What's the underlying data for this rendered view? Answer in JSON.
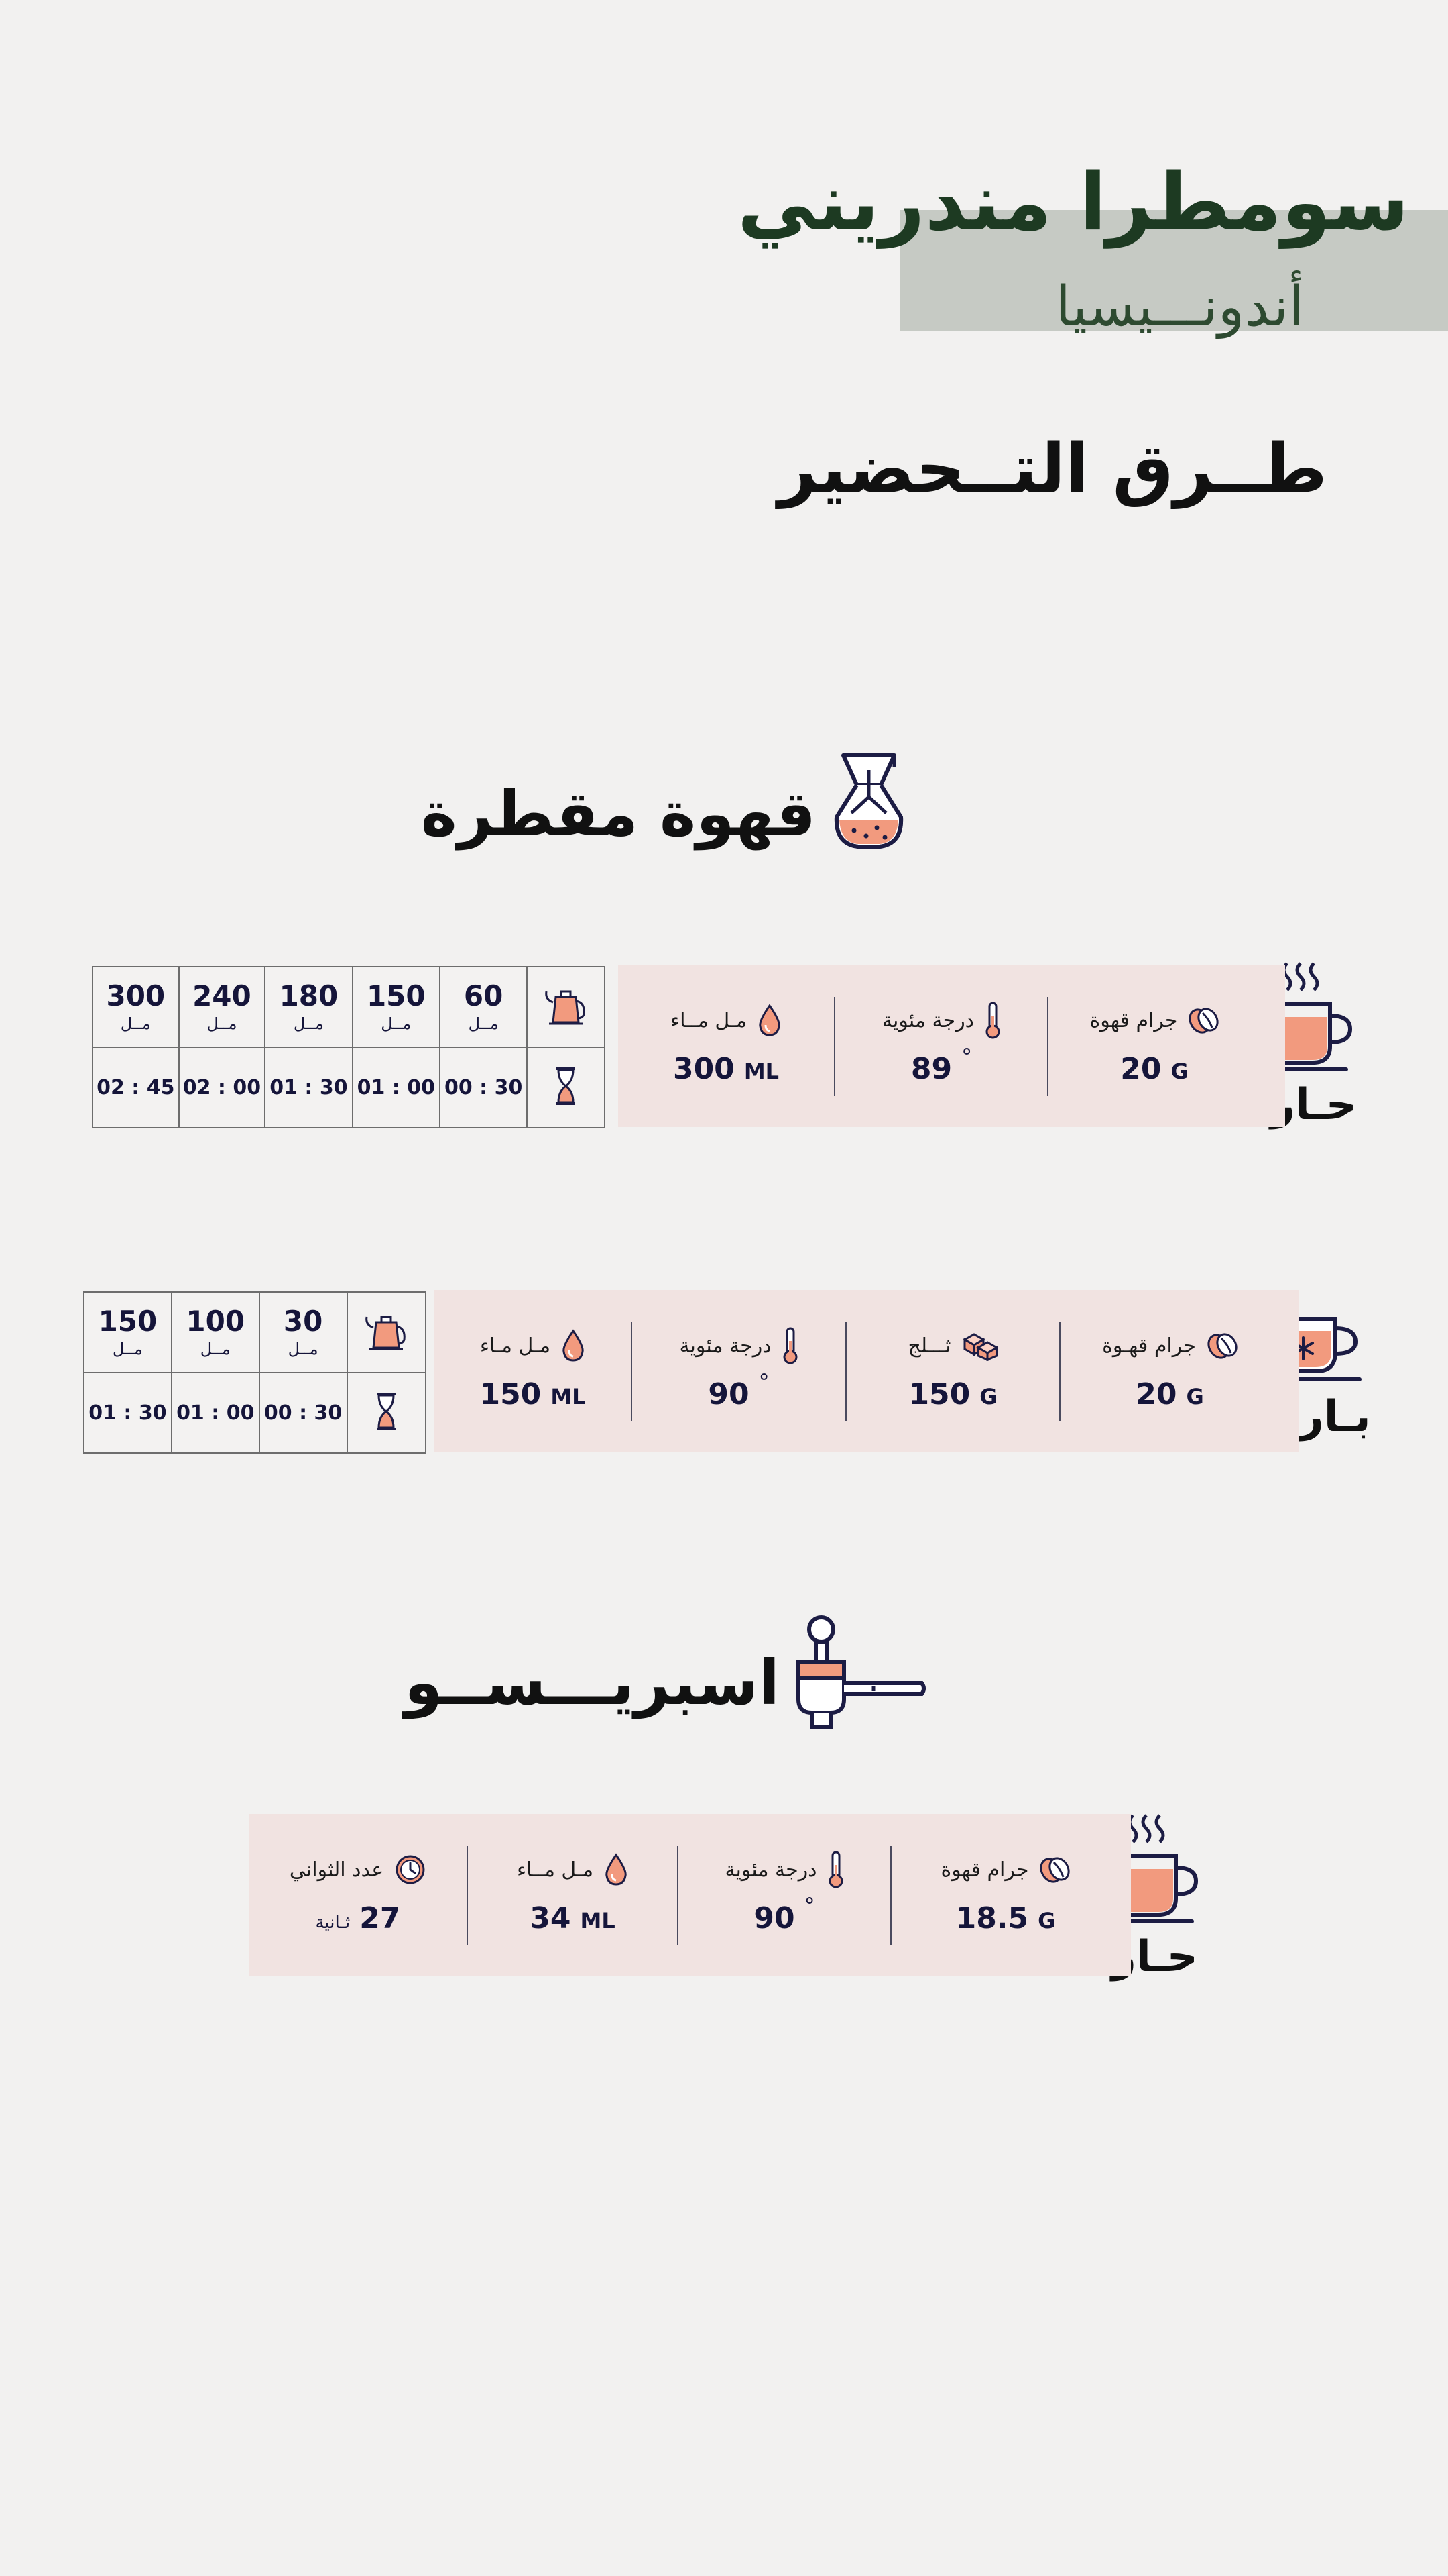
{
  "header": {
    "product_title": "سومطرا مندريني",
    "origin": "أندونـــيسيا",
    "methods_heading": "طــرق التــحضير"
  },
  "drip": {
    "title": "قهوة مقطرة",
    "icon": "chemex-icon",
    "hot": {
      "label": "حـار",
      "coffee_label": "جرام قهوة",
      "coffee_value": "20",
      "coffee_unit": "G",
      "temp_label": "درجة مئوية",
      "temp_value": "89",
      "temp_unit": "°",
      "water_label": "مـل مــاء",
      "water_value": "300",
      "water_unit": "ML",
      "table": {
        "ml_values": [
          "60",
          "150",
          "180",
          "240",
          "300"
        ],
        "ml_unit": "مــل",
        "times": [
          "00 : 30",
          "01 : 00",
          "01 : 30",
          "02 : 00",
          "02 : 45"
        ]
      }
    },
    "cold": {
      "label": "بـارد",
      "coffee_label": "جرام قهـوة",
      "coffee_value": "20",
      "coffee_unit": "G",
      "ice_label": "ثـــلج",
      "ice_value": "150",
      "ice_unit": "G",
      "temp_label": "درجة مئوية",
      "temp_value": "90",
      "temp_unit": "°",
      "water_label": "مـل مـاء",
      "water_value": "150",
      "water_unit": "ML",
      "table": {
        "ml_values": [
          "30",
          "100",
          "150"
        ],
        "ml_unit": "مــل",
        "times": [
          "00 : 30",
          "01 : 00",
          "01 : 30"
        ]
      }
    }
  },
  "espresso": {
    "title": "اسبريـــســو",
    "icon": "portafilter-icon",
    "hot": {
      "label": "حـار",
      "coffee_label": "جرام قهوة",
      "coffee_value": "18.5",
      "coffee_unit": "G",
      "temp_label": "درجة مئوية",
      "temp_value": "90",
      "temp_unit": "°",
      "water_label": "مـل مــاء",
      "water_value": "34",
      "water_unit": "ML",
      "time_label": "عدد الثواني",
      "time_value": "27",
      "time_unit": "ثـانية"
    }
  },
  "colors": {
    "accent": "#f29a7e",
    "navy": "#1c1c44",
    "panel": "#f1e3e1",
    "band": "#c6cac4",
    "title_green": "#1d3a22"
  }
}
